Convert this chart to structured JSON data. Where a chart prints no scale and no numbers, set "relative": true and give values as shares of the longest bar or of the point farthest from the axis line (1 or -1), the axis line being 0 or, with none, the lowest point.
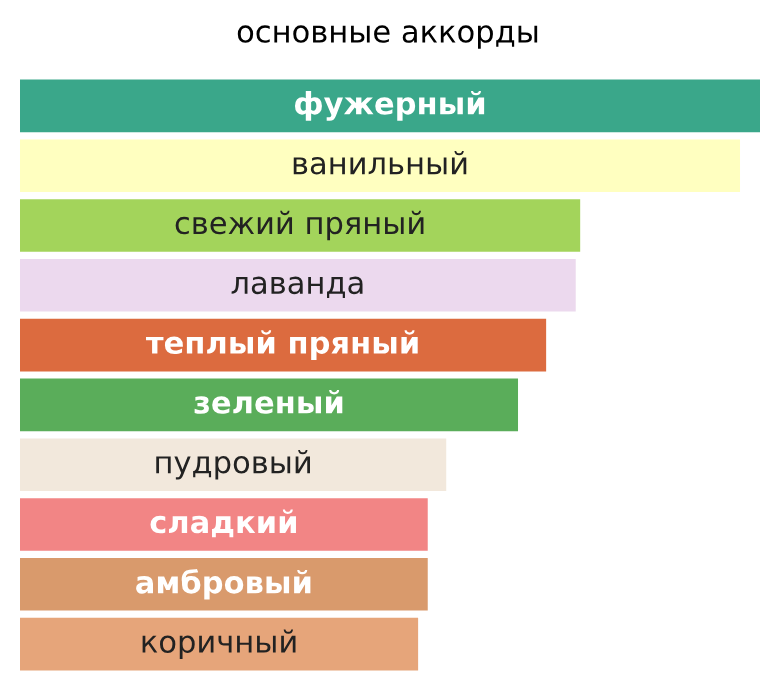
{
  "chart_data": {
    "type": "bar",
    "orientation": "horizontal",
    "relative": true,
    "title": "основные аккорды",
    "categories": [
      "фужерный",
      "ванильный",
      "свежий пряный",
      "лаванда",
      "теплый пряный",
      "зеленый",
      "пудровый",
      "сладкий",
      "амбровый",
      "коричный"
    ],
    "values": [
      1,
      0.973,
      0.757,
      0.751,
      0.711,
      0.673,
      0.576,
      0.551,
      0.551,
      0.538
    ],
    "colors": [
      "#3aa78a",
      "#ffffc0",
      "#a3d45b",
      "#ecd9ee",
      "#dc6b3f",
      "#5aad5a",
      "#f2e8dc",
      "#f28585",
      "#d99a6c",
      "#e6a57a"
    ]
  }
}
